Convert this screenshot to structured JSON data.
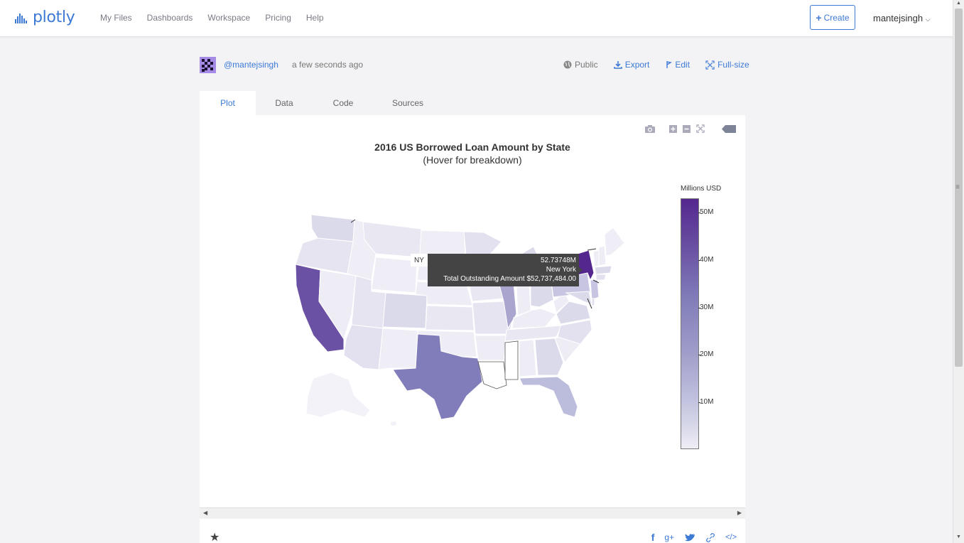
{
  "app": {
    "logo_text": "plotly",
    "nav": [
      "My Files",
      "Dashboards",
      "Workspace",
      "Pricing",
      "Help"
    ],
    "create_label": "Create",
    "username": "mantejsingh"
  },
  "meta": {
    "owner": "@mantejsingh",
    "time": "a few seconds ago",
    "actions": [
      {
        "label": "Public",
        "icon": "globe-icon"
      },
      {
        "label": "Export",
        "icon": "download-icon"
      },
      {
        "label": "Edit",
        "icon": "edit-icon"
      },
      {
        "label": "Full-size",
        "icon": "fullscreen-icon"
      }
    ]
  },
  "tabs": [
    "Plot",
    "Data",
    "Code",
    "Sources"
  ],
  "active_tab": "Plot",
  "chart_data": {
    "type": "choropleth",
    "title": "2016 US Borrowed Loan Amount by State",
    "subtitle": "(Hover for breakdown)",
    "colorbar_title": "Millions USD",
    "colorbar_ticks": [
      "50M",
      "40M",
      "30M",
      "20M",
      "10M"
    ],
    "colorscale": [
      "#efedf5",
      "#dadaeb",
      "#bcbddc",
      "#9e9ac8",
      "#807dba",
      "#6a51a3",
      "#54278f"
    ],
    "zmax": 52.73748,
    "tooltip": {
      "label": "NY",
      "value": "52.73748M",
      "state": "New York",
      "detail": "Total Outstanding Amount $52,737,484.00"
    }
  },
  "footer": {
    "star": "★",
    "share": [
      "f",
      "g+",
      "twitter",
      "link",
      "</>"
    ]
  }
}
